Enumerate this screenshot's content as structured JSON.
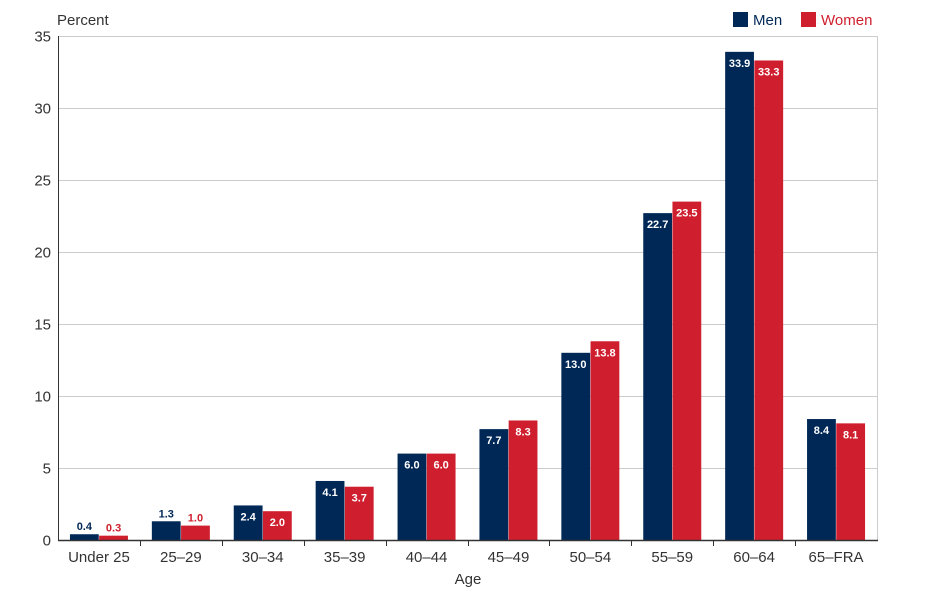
{
  "chart_data": {
    "type": "bar",
    "ylabel": "Percent",
    "xlabel": "Age",
    "ylim": [
      0,
      35
    ],
    "yticks": [
      0,
      5,
      10,
      15,
      20,
      25,
      30,
      35
    ],
    "grid": true,
    "legend_position": "top-right",
    "categories": [
      "Under 25",
      "25–29",
      "30–34",
      "35–39",
      "40–44",
      "45–49",
      "50–54",
      "55–59",
      "60–64",
      "65–FRA"
    ],
    "series": [
      {
        "name": "Men",
        "color": "#002856",
        "values": [
          0.4,
          1.3,
          2.4,
          4.1,
          6.0,
          7.7,
          13.0,
          22.7,
          33.9,
          8.4
        ],
        "labels": [
          "0.4",
          "1.3",
          "2.4",
          "4.1",
          "6.0",
          "7.7",
          "13.0",
          "22.7",
          "33.9",
          "8.4"
        ]
      },
      {
        "name": "Women",
        "color": "#cf1f2e",
        "values": [
          0.3,
          1.0,
          2.0,
          3.7,
          6.0,
          8.3,
          13.8,
          23.5,
          33.3,
          8.1
        ],
        "labels": [
          "0.3",
          "1.0",
          "2.0",
          "3.7",
          "6.0",
          "8.3",
          "13.8",
          "23.5",
          "33.3",
          "8.1"
        ]
      }
    ]
  }
}
